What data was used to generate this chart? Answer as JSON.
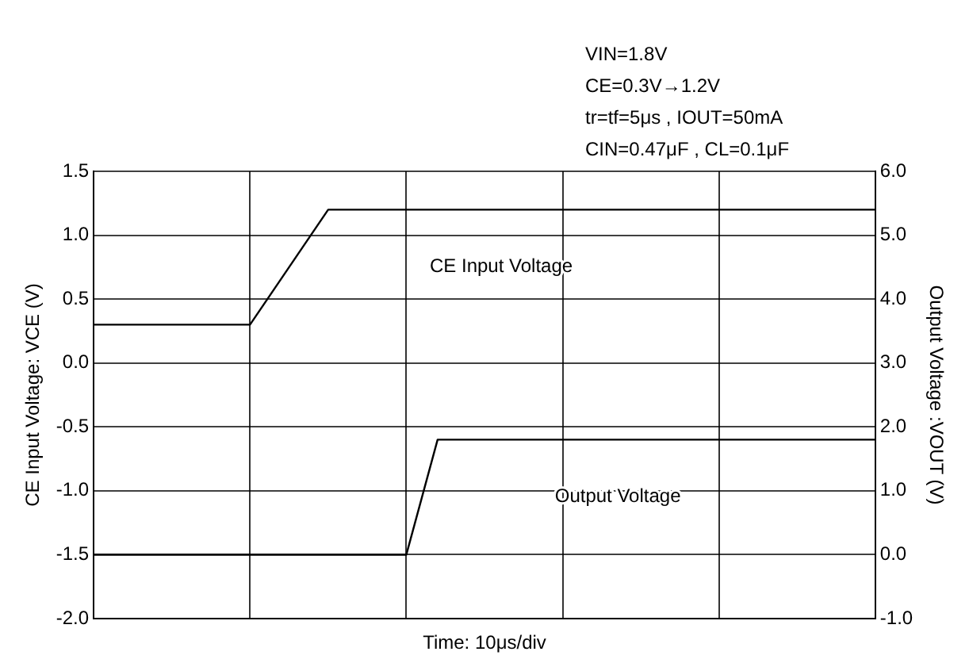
{
  "chart_data": {
    "type": "line",
    "xlabel": "Time: 10μs/div",
    "ylabel": "CE Input Voltage: VCE (V)",
    "y2label": "Output Voltage :VOUT (V)",
    "annotations": [
      "VIN=1.8V",
      "CE=0.3V→1.2V",
      "tr=tf=5μs , IOUT=50mA",
      "CIN=0.47μF , CL=0.1μF"
    ],
    "categories": [
      null,
      null,
      null,
      null,
      null,
      null,
      null,
      null,
      null,
      null,
      null,
      null,
      null,
      null,
      null,
      null,
      null,
      null,
      null,
      null,
      null,
      null,
      null,
      null,
      null,
      null,
      null,
      null,
      null,
      null,
      null,
      null,
      null,
      null,
      null,
      null,
      null,
      null,
      null,
      null,
      null,
      null,
      null,
      null,
      null,
      null,
      null,
      null,
      null,
      null,
      null
    ],
    "series": [
      {
        "name": "CE Input Voltage",
        "color": "#000000",
        "values": [
          0.3,
          0.3,
          0.3,
          0.3,
          0.3,
          0.3,
          0.3,
          0.3,
          0.3,
          0.3,
          0.3,
          0.48,
          0.66,
          0.84,
          1.02,
          1.2,
          1.2,
          1.2,
          1.2,
          1.2,
          1.2,
          1.2,
          1.2,
          1.2,
          1.2,
          1.2,
          1.2,
          1.2,
          1.2,
          1.2,
          1.2,
          1.2,
          1.2,
          1.2,
          1.2,
          1.2,
          1.2,
          1.2,
          1.2,
          1.2,
          1.2,
          1.2,
          1.2,
          1.2,
          1.2,
          1.2,
          1.2,
          1.2,
          1.2,
          1.2,
          1.2
        ]
      },
      {
        "name": "Output Voltage",
        "color": "#000000",
        "axis": "y2",
        "values": [
          0,
          0,
          0,
          0,
          0,
          0,
          0,
          0,
          0,
          0,
          0,
          0,
          0,
          0,
          0,
          0,
          0,
          0,
          0,
          0,
          0,
          0.9,
          1.8,
          1.8,
          1.8,
          1.8,
          1.8,
          1.8,
          1.8,
          1.8,
          1.8,
          1.8,
          1.8,
          1.8,
          1.8,
          1.8,
          1.8,
          1.8,
          1.8,
          1.8,
          1.8,
          1.8,
          1.8,
          1.8,
          1.8,
          1.8,
          1.8,
          1.8,
          1.8,
          1.8,
          1.8
        ]
      }
    ],
    "ylim": [
      -2,
      1.5
    ],
    "yticks": [
      {
        "value": -2,
        "label": "-2.0"
      },
      {
        "value": -1.5,
        "label": "-1.5"
      },
      {
        "value": -1,
        "label": "-1.0"
      },
      {
        "value": -0.5,
        "label": "-0.5"
      },
      {
        "value": 0,
        "label": "0.0"
      },
      {
        "value": 0.5,
        "label": "0.5"
      },
      {
        "value": 1,
        "label": "1.0"
      },
      {
        "value": 1.5,
        "label": "1.5"
      }
    ],
    "y2lim": [
      -1,
      6
    ],
    "y2ticks": [
      {
        "value": -1,
        "label": "-1.0"
      },
      {
        "value": 0,
        "label": "0.0"
      },
      {
        "value": 1,
        "label": "1.0"
      },
      {
        "value": 2,
        "label": "2.0"
      },
      {
        "value": 3,
        "label": "3.0"
      },
      {
        "value": 4,
        "label": "4.0"
      },
      {
        "value": 5,
        "label": "5.0"
      },
      {
        "value": 6,
        "label": "6.0"
      }
    ],
    "tick_labels": "y",
    "grid": true,
    "legend": false,
    "marker": "none",
    "line_style": "solid"
  }
}
